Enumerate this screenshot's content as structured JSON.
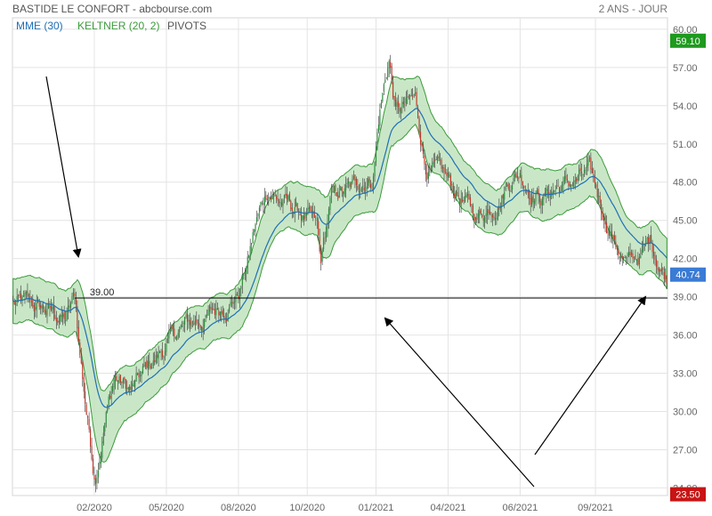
{
  "header": {
    "title": "BASTIDE LE CONFORT - abcbourse.com",
    "period": "2 ANS - JOUR"
  },
  "legend": [
    {
      "label": "MME (30)",
      "color": "#1f6fb5"
    },
    {
      "label": "KELTNER (20, 2)",
      "color": "#3c9a3c"
    },
    {
      "label": "PIVOTS",
      "color": "#555555"
    }
  ],
  "colors": {
    "up": "#2e8b3e",
    "down": "#c0392b",
    "band_fill": "#bfe3bd",
    "band_line": "#3c9a3c",
    "mme": "#1f6fb5",
    "badge_high": "#1e9a1e",
    "badge_last": "#3a7bd5",
    "badge_low": "#c81414",
    "grid": "#e4e4e4"
  },
  "chart_data": {
    "type": "candlestick",
    "y_axis": {
      "min": 23.4,
      "max": 60.9,
      "ticks": [
        "24.00",
        "27.00",
        "30.00",
        "33.00",
        "36.00",
        "39.00",
        "42.00",
        "45.00",
        "48.00",
        "51.00",
        "54.00",
        "57.00",
        "60.00"
      ]
    },
    "x_axis": {
      "ticks": [
        "02/2020",
        "05/2020",
        "08/2020",
        "10/2020",
        "01/2021",
        "04/2021",
        "06/2021",
        "09/2021"
      ]
    },
    "series": {
      "price_path": [
        [
          0,
          38.5
        ],
        [
          0.05,
          37.8
        ],
        [
          0.08,
          37.2
        ],
        [
          0.095,
          38.9
        ],
        [
          0.1,
          35.5
        ],
        [
          0.11,
          31.0
        ],
        [
          0.125,
          25.0
        ],
        [
          0.14,
          29.5
        ],
        [
          0.155,
          32.8
        ],
        [
          0.18,
          31.5
        ],
        [
          0.21,
          33.5
        ],
        [
          0.235,
          35.2
        ],
        [
          0.26,
          36.5
        ],
        [
          0.31,
          37.8
        ],
        [
          0.345,
          39.5
        ],
        [
          0.36,
          42.0
        ],
        [
          0.37,
          44.5
        ],
        [
          0.39,
          47.5
        ],
        [
          0.41,
          46.5
        ],
        [
          0.425,
          46.0
        ],
        [
          0.44,
          45.5
        ],
        [
          0.455,
          44.8
        ],
        [
          0.465,
          44.0
        ],
        [
          0.47,
          41.0
        ],
        [
          0.485,
          46.2
        ],
        [
          0.5,
          47.0
        ],
        [
          0.52,
          47.3
        ],
        [
          0.535,
          48.2
        ],
        [
          0.55,
          48.5
        ],
        [
          0.56,
          53.5
        ],
        [
          0.575,
          57.8
        ],
        [
          0.585,
          53.5
        ],
        [
          0.6,
          53.8
        ],
        [
          0.615,
          54.2
        ],
        [
          0.63,
          49.5
        ],
        [
          0.65,
          48.5
        ],
        [
          0.68,
          47.0
        ],
        [
          0.71,
          45.2
        ],
        [
          0.74,
          46.8
        ],
        [
          0.76,
          48.5
        ],
        [
          0.775,
          49.0
        ],
        [
          0.79,
          47.8
        ],
        [
          0.81,
          47.0
        ],
        [
          0.83,
          47.6
        ],
        [
          0.85,
          47.8
        ],
        [
          0.88,
          48.5
        ],
        [
          0.9,
          46.0
        ],
        [
          0.92,
          43.5
        ],
        [
          0.94,
          41.5
        ],
        [
          0.96,
          42.2
        ],
        [
          0.975,
          43.3
        ],
        [
          0.99,
          41.6
        ],
        [
          1.0,
          40.7
        ]
      ],
      "candle_count": 500
    },
    "pivot_line": {
      "label": "39.00",
      "value": 38.9
    },
    "badges": [
      {
        "label": "59.10",
        "value": 59.1,
        "kind": "high"
      },
      {
        "label": "40.74",
        "value": 40.74,
        "kind": "last"
      },
      {
        "label": "23.50",
        "value": 23.5,
        "kind": "low"
      }
    ],
    "annotations": [
      "arrow-to-first-touch",
      "arrow-up-middle",
      "arrow-up-right"
    ]
  }
}
